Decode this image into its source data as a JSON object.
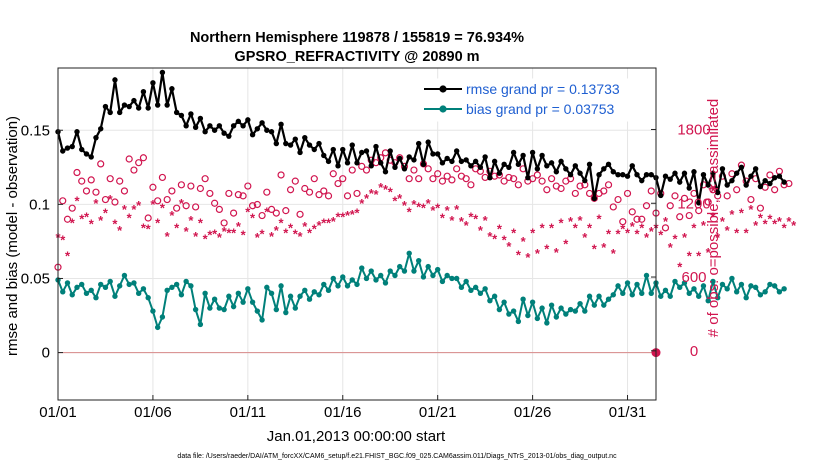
{
  "chart_data": {
    "type": "line",
    "title": "Northern Hemisphere 119878 / 155819 = 76.934%",
    "subtitle": "GPSRO_REFRACTIVITY @ 20890 m",
    "xlabel": "Jan.01,2013 00:00:00 start",
    "ylabel": "rmse and bias (model - observation)",
    "ylabel_right": "# of obs: o=possible; ∗=assimilated",
    "footnote": "data file: /Users/raeder/DAI/ATM_forcXX/CAM6_setup/f.e21.FHIST_BGC.f09_025.CAM6assim.011/Diags_NTrS_2013-01/obs_diag_output.nc",
    "x_ticks": [
      "01/01",
      "01/06",
      "01/11",
      "01/16",
      "01/21",
      "01/26",
      "01/31"
    ],
    "x_tick_values": [
      1,
      6,
      11,
      16,
      21,
      26,
      31
    ],
    "xlim": [
      1,
      32.5
    ],
    "y_ticks": [
      "0",
      "0.05",
      "0.1",
      "0.15"
    ],
    "y_tick_values": [
      0,
      0.05,
      0.1,
      0.15
    ],
    "ylim": [
      -0.032,
      0.192
    ],
    "y2_ticks": [
      "0",
      "600",
      "1200",
      "1800"
    ],
    "y2_tick_values": [
      0,
      600,
      1200,
      1800
    ],
    "y2lim": [
      -400,
      2300
    ],
    "grid": true,
    "legend_position": "top-right",
    "legend": [
      {
        "label": "rmse grand pr = 0.13733",
        "color": "#000000",
        "marker": "filled-circle"
      },
      {
        "label": "bias grand pr = 0.03753",
        "color": "#00807a",
        "marker": "filled-circle"
      }
    ],
    "series": [
      {
        "name": "rmse grand pr = 0.13733",
        "axis": "left",
        "color": "#000000",
        "x_start": 1,
        "x_step": 0.25,
        "values": [
          0.149,
          0.136,
          0.138,
          0.139,
          0.149,
          0.137,
          0.134,
          0.132,
          0.145,
          0.151,
          0.166,
          0.162,
          0.184,
          0.162,
          0.167,
          0.166,
          0.17,
          0.165,
          0.176,
          0.165,
          0.182,
          0.167,
          0.189,
          0.167,
          0.178,
          0.162,
          0.16,
          0.153,
          0.161,
          0.152,
          0.158,
          0.149,
          0.153,
          0.15,
          0.153,
          0.148,
          0.146,
          0.153,
          0.156,
          0.153,
          0.157,
          0.147,
          0.151,
          0.155,
          0.15,
          0.149,
          0.141,
          0.154,
          0.141,
          0.14,
          0.144,
          0.135,
          0.145,
          0.14,
          0.137,
          0.141,
          0.133,
          0.129,
          0.137,
          0.126,
          0.137,
          0.128,
          0.14,
          0.128,
          0.135,
          0.136,
          0.126,
          0.139,
          0.128,
          0.122,
          0.136,
          0.125,
          0.131,
          0.124,
          0.132,
          0.13,
          0.141,
          0.127,
          0.142,
          0.134,
          0.134,
          0.128,
          0.131,
          0.129,
          0.136,
          0.129,
          0.13,
          0.126,
          0.129,
          0.125,
          0.132,
          0.118,
          0.129,
          0.121,
          0.127,
          0.125,
          0.135,
          0.127,
          0.133,
          0.118,
          0.135,
          0.124,
          0.133,
          0.126,
          0.128,
          0.122,
          0.129,
          0.124,
          0.12,
          0.126,
          0.121,
          0.116,
          0.127,
          0.104,
          0.12,
          0.124,
          0.127,
          0.122,
          0.12,
          0.12,
          0.119,
          0.126,
          0.12,
          0.116,
          0.12,
          0.12,
          0.118,
          0.106,
          0.119,
          0.117,
          0.121,
          0.115,
          0.121,
          0.111,
          0.122,
          0.101,
          0.12,
          0.113,
          0.121,
          0.108,
          0.124,
          0.113,
          0.116,
          0.121,
          0.125,
          0.113,
          0.119,
          0.124,
          0.112,
          0.116,
          0.114,
          0.118,
          0.119,
          0.115
        ],
        "line_width": 2.2
      },
      {
        "name": "bias grand pr = 0.03753",
        "axis": "left",
        "color": "#00807a",
        "x_start": 1,
        "x_step": 0.25,
        "values": [
          0.049,
          0.041,
          0.047,
          0.039,
          0.044,
          0.046,
          0.04,
          0.042,
          0.037,
          0.046,
          0.044,
          0.048,
          0.038,
          0.045,
          0.052,
          0.046,
          0.047,
          0.04,
          0.043,
          0.037,
          0.028,
          0.017,
          0.024,
          0.042,
          0.044,
          0.046,
          0.039,
          0.048,
          0.045,
          0.029,
          0.019,
          0.04,
          0.03,
          0.036,
          0.03,
          0.029,
          0.038,
          0.031,
          0.04,
          0.034,
          0.043,
          0.034,
          0.028,
          0.022,
          0.044,
          0.04,
          0.029,
          0.045,
          0.027,
          0.038,
          0.03,
          0.038,
          0.042,
          0.036,
          0.041,
          0.039,
          0.046,
          0.042,
          0.05,
          0.045,
          0.051,
          0.045,
          0.049,
          0.046,
          0.057,
          0.05,
          0.055,
          0.049,
          0.052,
          0.047,
          0.055,
          0.052,
          0.058,
          0.055,
          0.067,
          0.055,
          0.062,
          0.051,
          0.058,
          0.052,
          0.056,
          0.048,
          0.052,
          0.05,
          0.05,
          0.044,
          0.048,
          0.042,
          0.044,
          0.04,
          0.043,
          0.035,
          0.038,
          0.029,
          0.034,
          0.026,
          0.028,
          0.021,
          0.036,
          0.025,
          0.034,
          0.023,
          0.03,
          0.02,
          0.032,
          0.024,
          0.03,
          0.026,
          0.029,
          0.028,
          0.033,
          0.028,
          0.038,
          0.032,
          0.038,
          0.032,
          0.036,
          0.039,
          0.045,
          0.04,
          0.047,
          0.039,
          0.046,
          0.04,
          0.052,
          0.04,
          0.047,
          0.038,
          0.042,
          0.038,
          0.048,
          0.044,
          0.047,
          0.04,
          0.043,
          0.038,
          0.045,
          0.035,
          0.048,
          0.037,
          0.046,
          0.043,
          0.05,
          0.041,
          0.046,
          0.037,
          0.045,
          0.044,
          0.039,
          0.041,
          0.046,
          0.045,
          0.041,
          0.043
        ],
        "line_width": 2
      }
    ],
    "obs_series": [
      {
        "name": "possible",
        "axis": "right",
        "marker": "open-circle",
        "color": "#d1154f",
        "x_start": 1,
        "x_step": 0.25,
        "values": [
          680,
          1220,
          1070,
          1160,
          1450,
          1380,
          1300,
          1390,
          1290,
          1520,
          1230,
          1400,
          1210,
          1380,
          1300,
          1560,
          1470,
          1530,
          1570,
          1080,
          1330,
          1220,
          1410,
          1230,
          1300,
          1160,
          1350,
          1180,
          1340,
          1170,
          1320,
          1400,
          1280,
          1200,
          1150,
          1040,
          1280,
          1120,
          1270,
          1260,
          1340,
          1180,
          1190,
          1100,
          1290,
          1150,
          1120,
          1430,
          1140,
          1310,
          1380,
          1110,
          1320,
          1290,
          1400,
          1270,
          1300,
          1260,
          1440,
          1360,
          1400,
          1260,
          1470,
          1280,
          1500,
          1470,
          1550,
          1530,
          1570,
          1610,
          1550,
          1530,
          1570,
          1500,
          1400,
          1470,
          1400,
          1520,
          1480,
          1400,
          1440,
          1380,
          1420,
          1390,
          1480,
          1420,
          1400,
          1350,
          1480,
          1460,
          1410,
          1460,
          1420,
          1430,
          1380,
          1410,
          1400,
          1350,
          1480,
          1380,
          1400,
          1430,
          1380,
          1310,
          1400,
          1340,
          1320,
          1380,
          1400,
          1280,
          1340,
          1350,
          1280,
          1240,
          1280,
          1300,
          1350,
          1170,
          1230,
          1050,
          1280,
          1130,
          1070,
          1070,
          1180,
          1300,
          1120,
          1280,
          1000,
          1180,
          1260,
          1090,
          1240,
          1100,
          1280,
          1140,
          1350,
          1210,
          1310,
          1260,
          1420,
          1260,
          1440,
          1310,
          1510,
          1380,
          1230,
          1400,
          1160,
          1330,
          1430,
          1310,
          1460,
          1350,
          1360
        ]
      },
      {
        "name": "assimilated",
        "axis": "right",
        "marker": "asterisk",
        "color": "#d1154f",
        "x_start": 1,
        "x_step": 0.25,
        "values": [
          920,
          900,
          770,
          1040,
          1220,
          1070,
          1090,
          1030,
          1200,
          1060,
          1120,
          1230,
          1030,
          980,
          1150,
          1080,
          1150,
          1180,
          1000,
          990,
          1190,
          1040,
          1160,
          930,
          1100,
          1000,
          1200,
          970,
          1060,
          930,
          1040,
          910,
          940,
          950,
          920,
          970,
          960,
          960,
          1010,
          940,
          1130,
          1080,
          920,
          950,
          1130,
          930,
          980,
          1040,
          960,
          1000,
          950,
          930,
          1010,
          960,
          990,
          1020,
          1040,
          1040,
          1050,
          1090,
          1090,
          1100,
          1110,
          1120,
          1200,
          1240,
          1280,
          1270,
          1330,
          1310,
          1290,
          1220,
          1240,
          1180,
          1130,
          1190,
          1170,
          1160,
          1200,
          1140,
          1160,
          1080,
          1140,
          1060,
          1150,
          1050,
          1020,
          1090,
          1070,
          980,
          1060,
          930,
          910,
          990,
          900,
          850,
          960,
          780,
          890,
          760,
          960,
          790,
          1000,
          830,
          1000,
          800,
          1040,
          870,
          1050,
          1000,
          1060,
          920,
          1000,
          830,
          1070,
          840,
          950,
          790,
          950,
          990,
          960,
          1010,
          950,
          1000,
          920,
          970,
          1000,
          940,
          1050,
          840,
          910,
          680,
          920,
          770,
          1000,
          770,
          1020,
          800,
          1090,
          920,
          1050,
          980,
          1110,
          960,
          1120,
          960,
          1150,
          1020,
          1080,
          1030,
          1070,
          1030,
          1050,
          1000,
          1050,
          1020
        ]
      }
    ]
  }
}
